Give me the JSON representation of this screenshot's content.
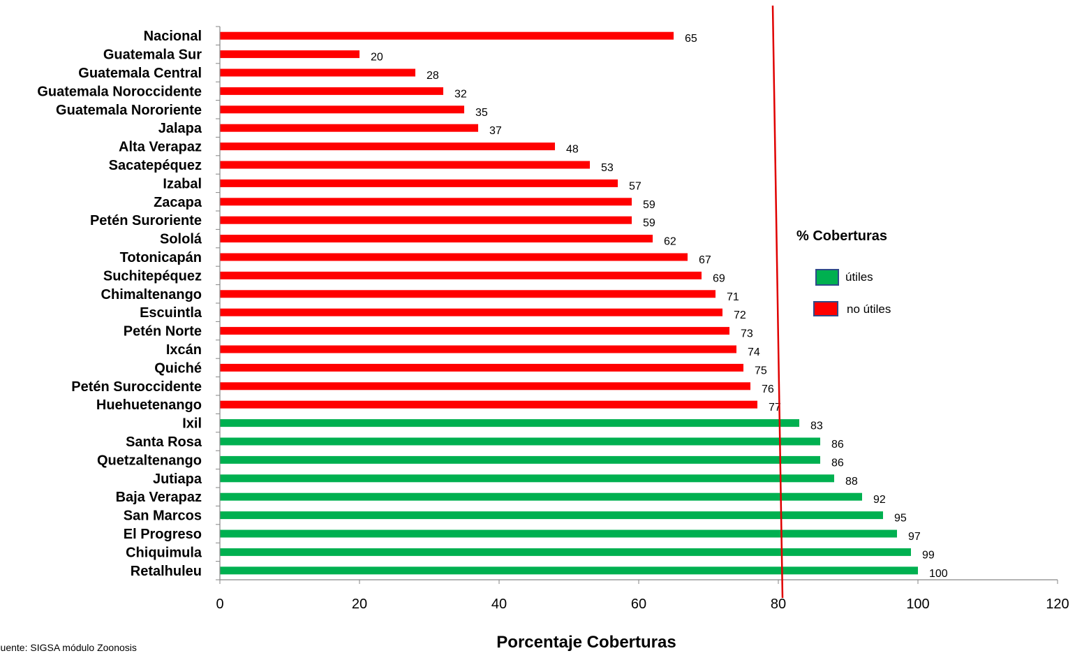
{
  "chart_data": {
    "type": "bar",
    "orientation": "horizontal",
    "categories": [
      "Nacional",
      "Guatemala Sur",
      "Guatemala Central",
      "Guatemala Noroccidente",
      "Guatemala Nororiente",
      "Jalapa",
      "Alta Verapaz",
      "Sacatepéquez",
      "Izabal",
      "Zacapa",
      "Petén Suroriente",
      "Sololá",
      "Totonicapán",
      "Suchitepéquez",
      "Chimaltenango",
      "Escuintla",
      "Petén Norte",
      "Ixcán",
      "Quiché",
      "Petén Suroccidente",
      "Huehuetenango",
      "Ixil",
      "Santa Rosa",
      "Quetzaltenango",
      "Jutiapa",
      "Baja Verapaz",
      "San Marcos",
      "El Progreso",
      "Chiquimula",
      "Retalhuleu"
    ],
    "values": [
      65,
      20,
      28,
      32,
      35,
      37,
      48,
      53,
      57,
      59,
      59,
      62,
      67,
      69,
      71,
      72,
      73,
      74,
      75,
      76,
      77,
      83,
      86,
      86,
      88,
      92,
      95,
      97,
      99,
      100
    ],
    "classes": [
      "no útiles",
      "no útiles",
      "no útiles",
      "no útiles",
      "no útiles",
      "no útiles",
      "no útiles",
      "no útiles",
      "no útiles",
      "no útiles",
      "no útiles",
      "no útiles",
      "no útiles",
      "no útiles",
      "no útiles",
      "no útiles",
      "no útiles",
      "no útiles",
      "no útiles",
      "no útiles",
      "no útiles",
      "útiles",
      "útiles",
      "útiles",
      "útiles",
      "útiles",
      "útiles",
      "útiles",
      "útiles",
      "útiles"
    ],
    "xlabel": "Porcentaje Coberturas",
    "xlim": [
      0,
      120
    ],
    "xticks": [
      0,
      20,
      40,
      60,
      80,
      100,
      120
    ],
    "threshold": 80,
    "grid": false,
    "legend": {
      "title": "% Coberturas",
      "placement": "right",
      "entries": [
        {
          "label": "útiles",
          "color": "#00B050"
        },
        {
          "label": "no útiles",
          "color": "#FF0000"
        }
      ]
    },
    "colors": {
      "utiles": "#00B050",
      "no_utiles": "#FF0000",
      "threshold_line": "#E00000",
      "legend_border": "#2F4B8A"
    }
  },
  "source_note": "Fuente: SIGSA módulo Zoonosis"
}
